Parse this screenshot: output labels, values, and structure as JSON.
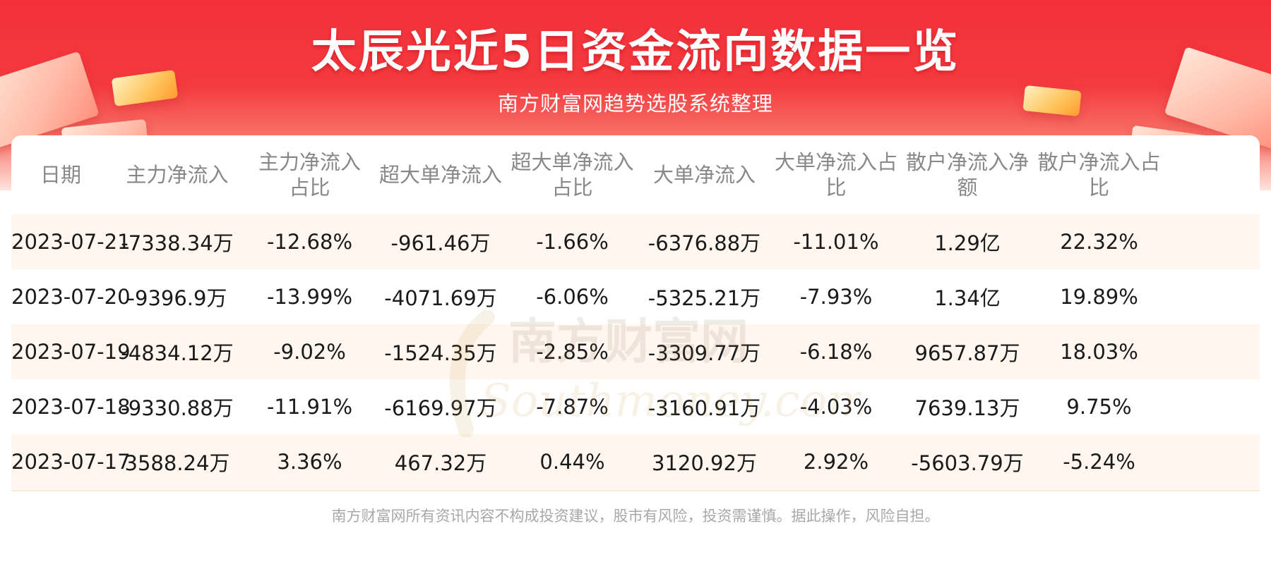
{
  "header": {
    "title": "太辰光近5日资金流向数据一览",
    "subtitle": "南方财富网趋势选股系统整理"
  },
  "table": {
    "columns": [
      "日期",
      "主力净流入",
      "主力净流入占比",
      "超大单净流入",
      "超大单净流入占比",
      "大单净流入",
      "大单净流入占比",
      "散户净流入净额",
      "散户净流入占比"
    ],
    "rows": [
      [
        "2023-07-21",
        "-7338.34万",
        "-12.68%",
        "-961.46万",
        "-1.66%",
        "-6376.88万",
        "-11.01%",
        "1.29亿",
        "22.32%"
      ],
      [
        "2023-07-20",
        "-9396.9万",
        "-13.99%",
        "-4071.69万",
        "-6.06%",
        "-5325.21万",
        "-7.93%",
        "1.34亿",
        "19.89%"
      ],
      [
        "2023-07-19",
        "-4834.12万",
        "-9.02%",
        "-1524.35万",
        "-2.85%",
        "-3309.77万",
        "-6.18%",
        "9657.87万",
        "18.03%"
      ],
      [
        "2023-07-18",
        "-9330.88万",
        "-11.91%",
        "-6169.97万",
        "-7.87%",
        "-3160.91万",
        "-4.03%",
        "7639.13万",
        "9.75%"
      ],
      [
        "2023-07-17",
        "3588.24万",
        "3.36%",
        "467.32万",
        "0.44%",
        "3120.92万",
        "2.92%",
        "-5603.79万",
        "-5.24%"
      ]
    ]
  },
  "watermark": {
    "cn": "南方财富网",
    "en": "Southmoney.com"
  },
  "footer": {
    "disclaimer": "南方财富网所有资讯内容不构成投资建议，股市有风险，投资需谨慎。据此操作，风险自担。"
  },
  "colors": {
    "banner_red": "#f3303a",
    "odd_row": "#fff7ef",
    "header_text": "#888888",
    "body_text": "#1a1a1a",
    "footer_text": "#a8a8a8"
  }
}
